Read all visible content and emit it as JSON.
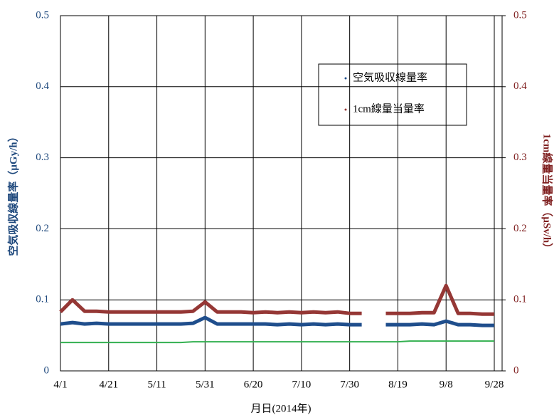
{
  "chart_data": {
    "type": "line",
    "x": [
      "4/1",
      null,
      null,
      null,
      "4/21",
      null,
      null,
      null,
      "5/11",
      null,
      null,
      null,
      "5/31",
      null,
      null,
      null,
      "6/20",
      null,
      null,
      null,
      "7/10",
      null,
      null,
      null,
      "7/30",
      null,
      null,
      null,
      "8/19",
      null,
      null,
      null,
      "9/8",
      null,
      null,
      null,
      "9/28"
    ],
    "x_label": "月日(2014年)",
    "y_label": "空気吸収線量率（μGy/h）",
    "y2_label": "1cm線量当量率（μSv/h）",
    "ylim": [
      0,
      0.5
    ],
    "yticks": [
      0,
      0.1,
      0.2,
      0.3,
      0.4,
      0.5
    ],
    "y2lim": [
      0,
      0.5
    ],
    "y2ticks": [
      0,
      0.1,
      0.2,
      0.3,
      0.4,
      0.5
    ],
    "grid": true,
    "legend": "upper right",
    "series": [
      {
        "name": "空気吸収線量率",
        "color": "#1f4e8c",
        "values": [
          0.066,
          0.068,
          0.066,
          0.067,
          0.066,
          0.066,
          0.066,
          0.066,
          0.066,
          0.066,
          0.066,
          0.067,
          0.075,
          0.066,
          0.066,
          0.066,
          0.066,
          0.066,
          0.065,
          0.066,
          0.065,
          0.066,
          0.065,
          0.066,
          0.065,
          0.065,
          null,
          0.065,
          0.065,
          0.065,
          0.066,
          0.065,
          0.07,
          0.065,
          0.065,
          0.064,
          0.064
        ]
      },
      {
        "name": "1cm線量当量率",
        "color": "#953735",
        "axis": "y2",
        "values": [
          0.083,
          0.1,
          0.084,
          0.084,
          0.083,
          0.083,
          0.083,
          0.083,
          0.083,
          0.083,
          0.083,
          0.084,
          0.097,
          0.083,
          0.083,
          0.083,
          0.082,
          0.083,
          0.082,
          0.083,
          0.082,
          0.083,
          0.082,
          0.083,
          0.081,
          0.081,
          null,
          0.081,
          0.081,
          0.081,
          0.082,
          0.082,
          0.12,
          0.081,
          0.081,
          0.08,
          0.08
        ]
      },
      {
        "color": "#33b050",
        "values": [
          0.04,
          0.04,
          0.04,
          0.04,
          0.04,
          0.04,
          0.04,
          0.04,
          0.04,
          0.04,
          0.04,
          0.041,
          0.041,
          0.041,
          0.041,
          0.041,
          0.041,
          0.041,
          0.041,
          0.041,
          0.041,
          0.041,
          0.041,
          0.041,
          0.041,
          0.041,
          0.041,
          0.041,
          0.041,
          0.042,
          0.042,
          0.042,
          0.042,
          0.042,
          0.042,
          0.042,
          0.042
        ]
      }
    ]
  }
}
